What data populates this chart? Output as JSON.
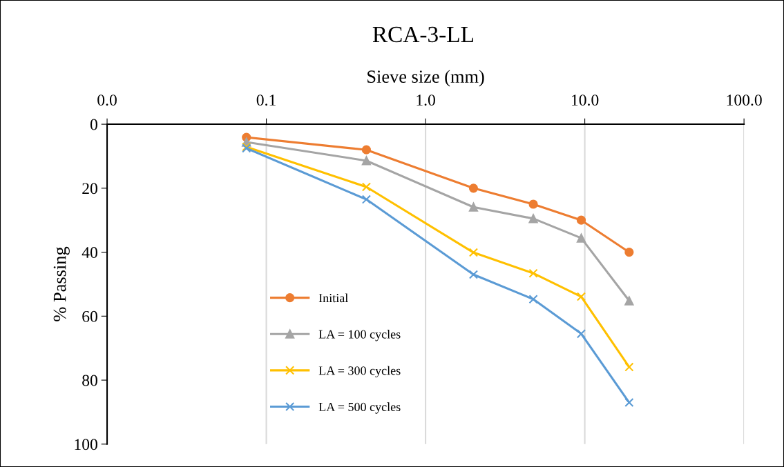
{
  "chart_data": {
    "type": "line",
    "title": "RCA-3-LL",
    "xlabel": "Sieve size (mm)",
    "ylabel": "% Passing",
    "x": [
      0.075,
      0.425,
      2,
      4.75,
      9.5,
      19
    ],
    "series": [
      {
        "name": "Initial",
        "color": "#ed7d31",
        "marker": "circle",
        "values": [
          4.1,
          8,
          20,
          25,
          30,
          40
        ]
      },
      {
        "name": "LA = 100 cycles",
        "color": "#a5a5a5",
        "marker": "triangle",
        "values": [
          5.6,
          11.4,
          25.9,
          29.5,
          35.6,
          55.2
        ]
      },
      {
        "name": "LA = 300 cycles",
        "color": "#ffc000",
        "marker": "cross",
        "values": [
          7.1,
          19.6,
          40.1,
          46.6,
          53.9,
          75.9
        ]
      },
      {
        "name": "LA = 500 cycles",
        "color": "#5b9bd5",
        "marker": "cross",
        "values": [
          7.5,
          23.5,
          47,
          54.7,
          65.5,
          87
        ]
      }
    ],
    "log": "x",
    "xlim": [
      0.01,
      100
    ],
    "xticks": [
      {
        "value": 0.01,
        "label": "0.0"
      },
      {
        "value": 0.1,
        "label": "0.1"
      },
      {
        "value": 1,
        "label": "1.0"
      },
      {
        "value": 10,
        "label": "10.0"
      },
      {
        "value": 100,
        "label": "100.0"
      }
    ],
    "ylim": [
      100,
      0
    ],
    "yticks": [
      0,
      20,
      40,
      60,
      80,
      100
    ],
    "grid": "x",
    "legend": "bottom left"
  }
}
